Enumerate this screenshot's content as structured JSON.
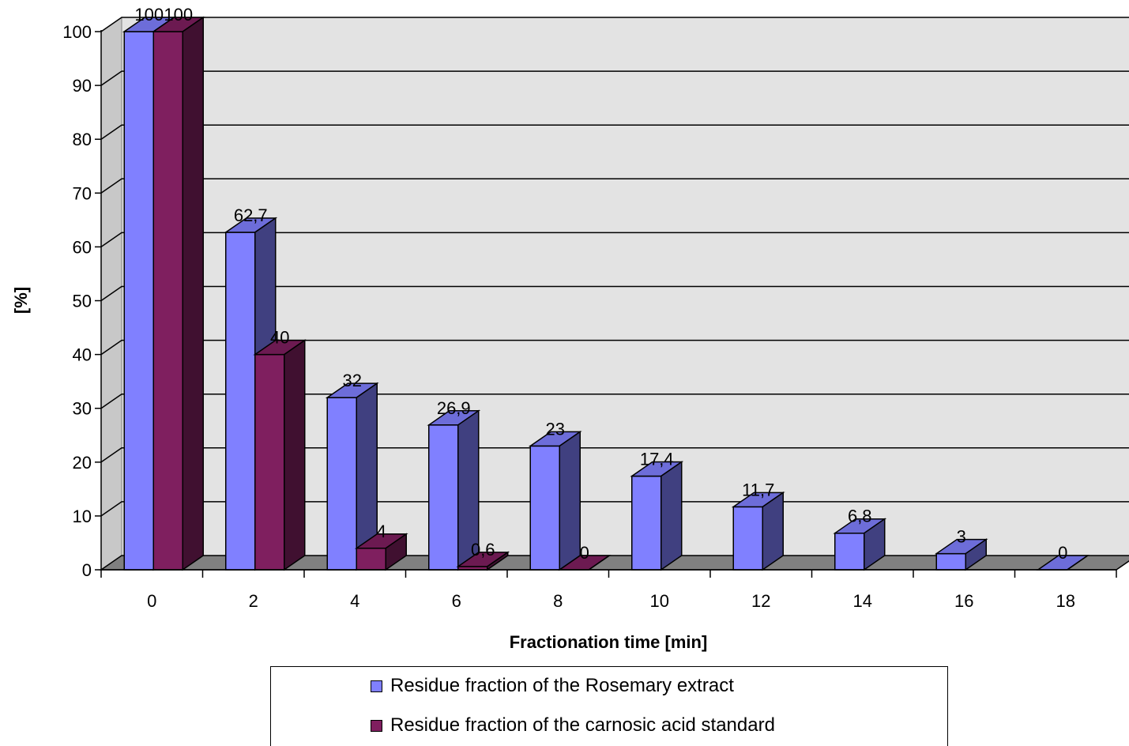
{
  "chart_data": {
    "type": "bar",
    "categories": [
      "0",
      "2",
      "4",
      "6",
      "8",
      "10",
      "12",
      "14",
      "16",
      "18"
    ],
    "series": [
      {
        "name": "Residue fraction of the Rosemary extract",
        "values": [
          100,
          62.7,
          32,
          26.9,
          23,
          17.4,
          11.7,
          6.8,
          3,
          0
        ],
        "labels": [
          "100",
          "62,7",
          "32",
          "26,9",
          "23",
          "17,4",
          "11,7",
          "6,8",
          "3",
          "0"
        ],
        "color": "#8080FF"
      },
      {
        "name": "Residue fraction of the carnosic acid standard",
        "values": [
          100,
          40,
          4,
          0.6,
          0,
          null,
          null,
          null,
          null,
          null
        ],
        "labels": [
          "100",
          "40",
          "4",
          "0,6",
          "0",
          null,
          null,
          null,
          null,
          null
        ],
        "color": "#7F1F5F"
      }
    ],
    "xlabel": "Fractionation time [min]",
    "ylabel": "[%]",
    "ylim": [
      0,
      100
    ],
    "yticks": [
      "0",
      "10",
      "20",
      "30",
      "40",
      "50",
      "60",
      "70",
      "80",
      "90",
      "100"
    ],
    "grid": true,
    "style": "3d-clustered-column",
    "legend_position": "bottom",
    "wall_color": "#E3E3E3",
    "floor_color": "#808080"
  }
}
